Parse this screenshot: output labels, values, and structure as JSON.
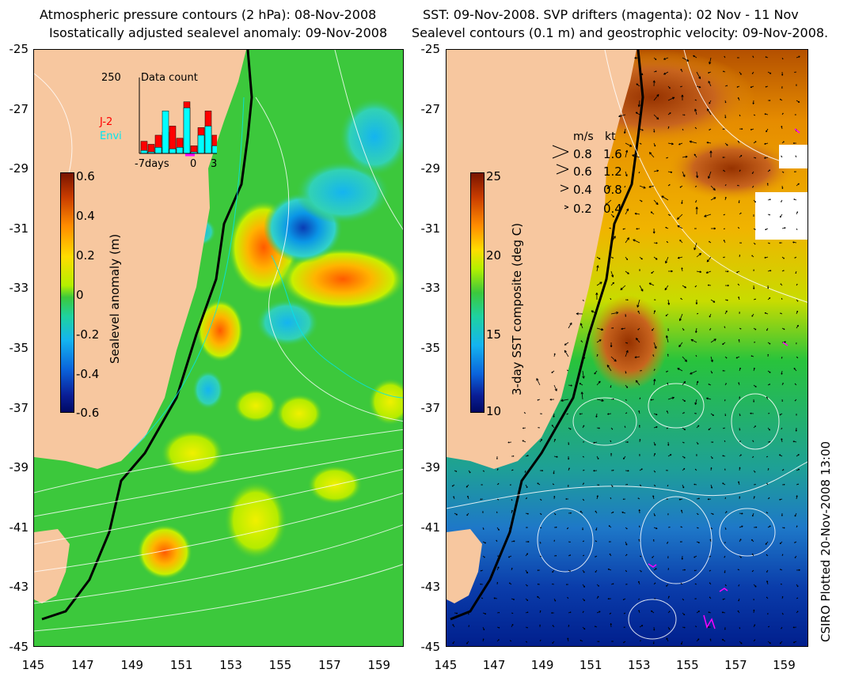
{
  "left": {
    "title_line1": "Atmospheric pressure contours (2 hPa): 08-Nov-2008",
    "title_line2": "Isostatically adjusted sealevel anomaly: 09-Nov-2008",
    "colorbar_label": "Sealevel anomaly (m)",
    "colorbar_ticks": [
      "0.6",
      "0.4",
      "0.2",
      "0",
      "-0.2",
      "-0.4",
      "-0.6"
    ],
    "inset": {
      "title": "Data count",
      "ymax_label": "250",
      "legend_j2": "J-2",
      "legend_envi": "Envi",
      "xlabel_left": "-7days",
      "xlabel_mid": "0",
      "xlabel_right": "3",
      "bars_j2": [
        40,
        30,
        60,
        70,
        90,
        50,
        170,
        25,
        85,
        140,
        60
      ],
      "bars_envi": [
        10,
        5,
        20,
        140,
        15,
        20,
        150,
        5,
        60,
        90,
        25
      ],
      "colors": {
        "j2": "#ff0000",
        "envi": "#00ffff"
      }
    }
  },
  "right": {
    "title_line1": "SST: 09-Nov-2008. SVP drifters (magenta): 02 Nov - 11 Nov",
    "title_line2": "Sealevel contours (0.1 m) and geostrophic velocity: 09-Nov-2008.",
    "colorbar_label": "3-day SST composite (deg C)",
    "colorbar_ticks": [
      "25",
      "20",
      "15",
      "10"
    ],
    "speed_legend": {
      "header_ms": "m/s",
      "header_kt": "kt",
      "rows": [
        {
          "ms": "0.8",
          "kt": "1.6"
        },
        {
          "ms": "0.6",
          "kt": "1.2"
        },
        {
          "ms": "0.4",
          "kt": "0.8"
        },
        {
          "ms": "0.2",
          "kt": "0.4"
        }
      ]
    }
  },
  "axes": {
    "lat_labels": [
      "-25",
      "-27",
      "-29",
      "-31",
      "-33",
      "-35",
      "-37",
      "-39",
      "-41",
      "-43",
      "-45"
    ],
    "lon_labels": [
      "145",
      "147",
      "149",
      "151",
      "153",
      "155",
      "157",
      "159"
    ]
  },
  "credit": "CSIRO Plotted 20-Nov-2008 13:00",
  "colors": {
    "land": "#f7c79f",
    "ocean_anomaly": "#3cc83c",
    "coast_shelf": "#000000",
    "drifter": "#ff00ff"
  }
}
